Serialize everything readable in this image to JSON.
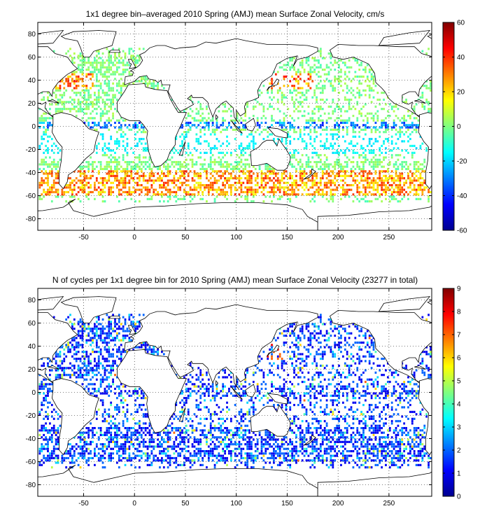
{
  "chart_data": [
    {
      "type": "heatmap",
      "title": "1x1 degree bin–averaged 2010 Spring (AMJ) mean Surface Zonal Velocity, cm/s",
      "xlim": [
        -95,
        292
      ],
      "ylim": [
        -90,
        90
      ],
      "x_ticks": [
        -50,
        0,
        50,
        100,
        150,
        200,
        250
      ],
      "y_ticks": [
        -80,
        -60,
        -40,
        -20,
        0,
        20,
        40,
        60,
        80
      ],
      "x_tick_labels": [
        "-50",
        "0",
        "50",
        "100",
        "150",
        "200",
        "250"
      ],
      "y_tick_labels": [
        "-80",
        "-60",
        "-40",
        "-20",
        "0",
        "20",
        "40",
        "60",
        "80"
      ],
      "grid": true,
      "colorbar": {
        "range": [
          -60,
          60
        ],
        "ticks": [
          -60,
          -40,
          -20,
          0,
          20,
          40,
          60
        ],
        "tick_labels": [
          "-60",
          "-40",
          "-20",
          "0",
          "20",
          "40",
          "60"
        ],
        "colormap": "jet"
      }
    },
    {
      "type": "heatmap",
      "title": "N of cycles per 1x1 degree bin for 2010 Spring (AMJ) mean Surface Zonal Velocity (23277 in total)",
      "xlim": [
        -95,
        292
      ],
      "ylim": [
        -90,
        90
      ],
      "x_ticks": [
        -50,
        0,
        50,
        100,
        150,
        200,
        250
      ],
      "y_ticks": [
        -80,
        -60,
        -40,
        -20,
        0,
        20,
        40,
        60,
        80
      ],
      "x_tick_labels": [
        "-50",
        "0",
        "50",
        "100",
        "150",
        "200",
        "250"
      ],
      "y_tick_labels": [
        "-80",
        "-60",
        "-40",
        "-20",
        "0",
        "20",
        "40",
        "60",
        "80"
      ],
      "grid": true,
      "colorbar": {
        "range": [
          0,
          9
        ],
        "ticks": [
          0,
          1,
          2,
          3,
          4,
          5,
          6,
          7,
          8,
          9
        ],
        "tick_labels": [
          "0",
          "1",
          "2",
          "3",
          "4",
          "5",
          "6",
          "7",
          "8",
          "9"
        ],
        "colormap": "jet"
      }
    }
  ]
}
